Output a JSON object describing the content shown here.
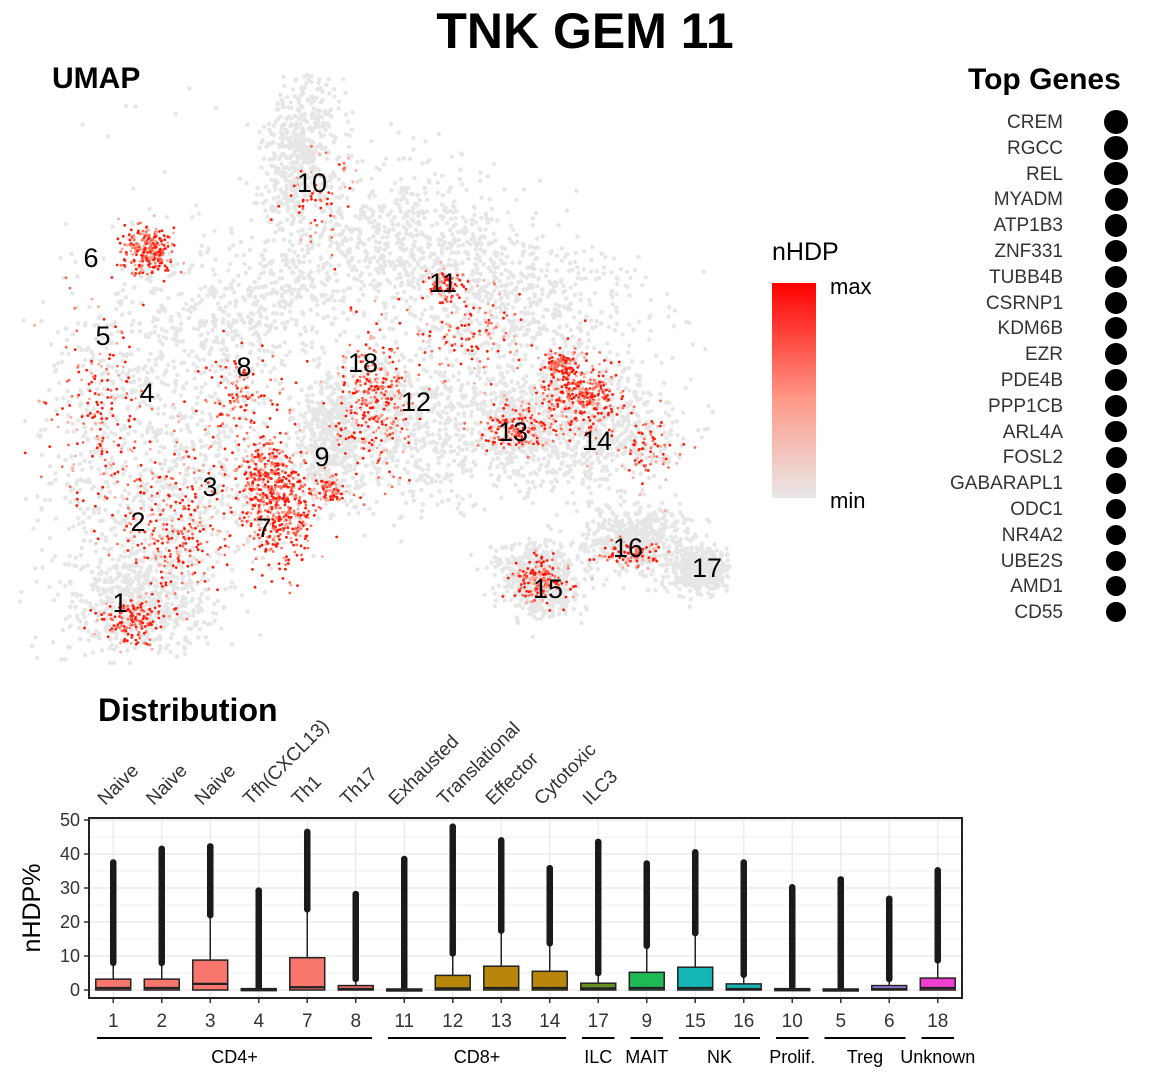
{
  "title": "TNK GEM 11",
  "umap": {
    "title": "UMAP",
    "cluster_labels": [
      {
        "label": "1",
        "x": 120,
        "y": 603
      },
      {
        "label": "2",
        "x": 138,
        "y": 522
      },
      {
        "label": "3",
        "x": 210,
        "y": 487
      },
      {
        "label": "4",
        "x": 147,
        "y": 393
      },
      {
        "label": "5",
        "x": 103,
        "y": 336
      },
      {
        "label": "6",
        "x": 91,
        "y": 258
      },
      {
        "label": "7",
        "x": 264,
        "y": 528
      },
      {
        "label": "8",
        "x": 244,
        "y": 367
      },
      {
        "label": "9",
        "x": 322,
        "y": 457
      },
      {
        "label": "10",
        "x": 312,
        "y": 183
      },
      {
        "label": "11",
        "x": 443,
        "y": 283
      },
      {
        "label": "12",
        "x": 416,
        "y": 402
      },
      {
        "label": "13",
        "x": 513,
        "y": 432
      },
      {
        "label": "14",
        "x": 597,
        "y": 441
      },
      {
        "label": "15",
        "x": 548,
        "y": 589
      },
      {
        "label": "16",
        "x": 628,
        "y": 548
      },
      {
        "label": "17",
        "x": 707,
        "y": 568
      },
      {
        "label": "18",
        "x": 363,
        "y": 363
      }
    ]
  },
  "legend": {
    "title": "nHDP",
    "max_label": "max",
    "min_label": "min",
    "colors": [
      "#e8e8e8",
      "#ff0000"
    ]
  },
  "top_genes": {
    "title": "Top Genes",
    "genes": [
      {
        "name": "CREM",
        "size": 1.0
      },
      {
        "name": "RGCC",
        "size": 0.97
      },
      {
        "name": "REL",
        "size": 0.92
      },
      {
        "name": "MYADM",
        "size": 0.9
      },
      {
        "name": "ATP1B3",
        "size": 0.88
      },
      {
        "name": "ZNF331",
        "size": 0.86
      },
      {
        "name": "TUBB4B",
        "size": 0.84
      },
      {
        "name": "CSRNP1",
        "size": 0.82
      },
      {
        "name": "KDM6B",
        "size": 0.8
      },
      {
        "name": "EZR",
        "size": 0.78
      },
      {
        "name": "PDE4B",
        "size": 0.76
      },
      {
        "name": "PPP1CB",
        "size": 0.74
      },
      {
        "name": "ARL4A",
        "size": 0.72
      },
      {
        "name": "FOSL2",
        "size": 0.7
      },
      {
        "name": "GABARAPL1",
        "size": 0.68
      },
      {
        "name": "ODC1",
        "size": 0.66
      },
      {
        "name": "NR4A2",
        "size": 0.64
      },
      {
        "name": "UBE2S",
        "size": 0.62
      },
      {
        "name": "AMD1",
        "size": 0.6
      },
      {
        "name": "CD55",
        "size": 0.57
      }
    ]
  },
  "chart_data": {
    "type": "box",
    "title": "Distribution",
    "ylabel": "nHDP%",
    "ylim": [
      0,
      50
    ],
    "yticks": [
      0,
      10,
      20,
      30,
      40,
      50
    ],
    "grid": true,
    "categories": [
      "1",
      "2",
      "3",
      "4",
      "7",
      "8",
      "11",
      "12",
      "13",
      "14",
      "17",
      "9",
      "15",
      "16",
      "10",
      "5",
      "6",
      "18"
    ],
    "subtypes": [
      "Naive",
      "Naive",
      "Naive",
      "Tfh(CXCL13)",
      "Th1",
      "Th17",
      "Exhausted",
      "Translational",
      "Effector",
      "Cytotoxic",
      "ILC3",
      "",
      "",
      "",
      "",
      "",
      "",
      ""
    ],
    "groups": [
      {
        "name": "CD4+",
        "start": 0,
        "end": 5
      },
      {
        "name": "CD8+",
        "start": 6,
        "end": 9
      },
      {
        "name": "ILC",
        "start": 10,
        "end": 10
      },
      {
        "name": "MAIT",
        "start": 11,
        "end": 11
      },
      {
        "name": "NK",
        "start": 12,
        "end": 13
      },
      {
        "name": "Prolif.",
        "start": 14,
        "end": 14
      },
      {
        "name": "Treg",
        "start": 15,
        "end": 16
      },
      {
        "name": "Unknown",
        "start": 17,
        "end": 17
      }
    ],
    "boxes": [
      {
        "q1": 0,
        "median": 0.6,
        "q3": 3.2,
        "max": 37.5,
        "color": "#f8766d"
      },
      {
        "q1": 0,
        "median": 0.6,
        "q3": 3.2,
        "max": 41.5,
        "color": "#f8766d"
      },
      {
        "q1": 0,
        "median": 1.8,
        "q3": 8.8,
        "max": 42.2,
        "color": "#f8766d"
      },
      {
        "q1": 0,
        "median": 0.1,
        "q3": 0.4,
        "max": 29.2,
        "color": "#f8766d"
      },
      {
        "q1": 0,
        "median": 0.8,
        "q3": 9.5,
        "max": 46.5,
        "color": "#f8766d"
      },
      {
        "q1": 0,
        "median": 0.3,
        "q3": 1.3,
        "max": 28.2,
        "color": "#f8766d"
      },
      {
        "q1": 0,
        "median": 0.1,
        "q3": 0.3,
        "max": 38.5,
        "color": "#b8860b"
      },
      {
        "q1": 0,
        "median": 0.5,
        "q3": 4.3,
        "max": 48.0,
        "color": "#b8860b"
      },
      {
        "q1": 0,
        "median": 0.6,
        "q3": 7.0,
        "max": 44.0,
        "color": "#b8860b"
      },
      {
        "q1": 0,
        "median": 0.6,
        "q3": 5.5,
        "max": 35.8,
        "color": "#b8860b"
      },
      {
        "q1": 0,
        "median": 0.5,
        "q3": 2.0,
        "max": 43.5,
        "color": "#6b8e23"
      },
      {
        "q1": 0,
        "median": 0.6,
        "q3": 5.2,
        "max": 37.2,
        "color": "#1db954"
      },
      {
        "q1": 0,
        "median": 0.6,
        "q3": 6.7,
        "max": 40.5,
        "color": "#17b6b6"
      },
      {
        "q1": 0,
        "median": 0.3,
        "q3": 1.8,
        "max": 37.5,
        "color": "#17b6b6"
      },
      {
        "q1": 0,
        "median": 0.1,
        "q3": 0.4,
        "max": 30.2,
        "color": "#7fa0f0"
      },
      {
        "q1": 0,
        "median": 0.1,
        "q3": 0.3,
        "max": 32.5,
        "color": "#a780f0"
      },
      {
        "q1": 0,
        "median": 0.3,
        "q3": 1.3,
        "max": 26.8,
        "color": "#a780f0"
      },
      {
        "q1": 0,
        "median": 0.6,
        "q3": 3.5,
        "max": 35.2,
        "color": "#f03fd0"
      }
    ]
  }
}
